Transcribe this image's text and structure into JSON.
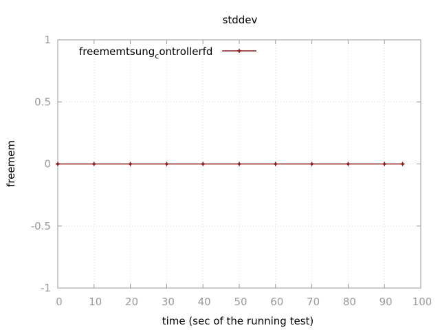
{
  "chart_data": {
    "type": "line",
    "title": "stddev",
    "xlabel": "time (sec of the running test)",
    "ylabel": "freemem",
    "xlim": [
      0,
      100
    ],
    "ylim": [
      -1,
      1
    ],
    "x_ticks": [
      0,
      10,
      20,
      30,
      40,
      50,
      60,
      70,
      80,
      90,
      100
    ],
    "y_ticks": [
      1,
      0.5,
      0,
      -0.5,
      -1
    ],
    "grid": true,
    "legend_position": "top-left",
    "legend_parts": {
      "base": "freememtsung",
      "subscript": "c",
      "rest": "ontrollerfd"
    },
    "series": [
      {
        "name": "freememtsung_controllerfd",
        "color": "#8b1a1a",
        "x": [
          0,
          10,
          20,
          30,
          40,
          50,
          60,
          70,
          80,
          90,
          95
        ],
        "values": [
          0,
          0,
          0,
          0,
          0,
          0,
          0,
          0,
          0,
          0,
          0
        ]
      }
    ]
  }
}
